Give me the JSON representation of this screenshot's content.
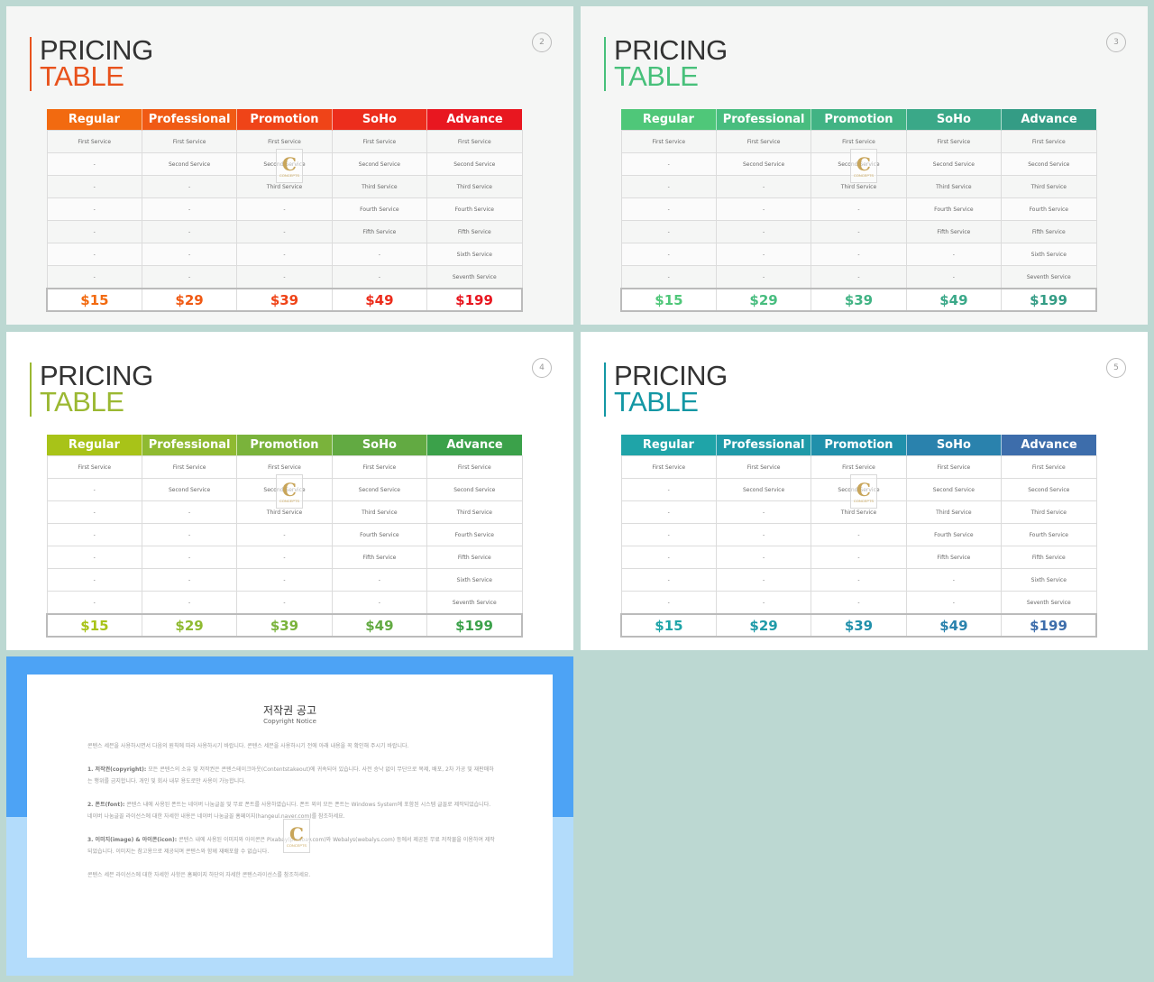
{
  "slides": [
    {
      "title_line1": "PRICING",
      "title_line2": "TABLE",
      "page_number": "2",
      "title_color": "#e8521c",
      "header_colors": [
        "#f26a10",
        "#f05a14",
        "#ef4418",
        "#ec2d1c",
        "#e81720"
      ],
      "price_colors": [
        "#f26a10",
        "#f05a14",
        "#ef4418",
        "#ec2d1c",
        "#e81720"
      ]
    },
    {
      "title_line1": "PRICING",
      "title_line2": "TABLE",
      "page_number": "3",
      "title_color": "#47c07a",
      "header_colors": [
        "#4fc779",
        "#48bd7f",
        "#41b384",
        "#3aa888",
        "#349c85"
      ],
      "price_colors": [
        "#4fc779",
        "#48bd7f",
        "#41b384",
        "#3aa888",
        "#349c85"
      ]
    },
    {
      "title_line1": "PRICING",
      "title_line2": "TABLE",
      "page_number": "4",
      "title_color": "#9bb832",
      "header_colors": [
        "#a8c318",
        "#8fba31",
        "#7ab33b",
        "#62aa42",
        "#3ba14a"
      ],
      "price_colors": [
        "#a8c318",
        "#8fba31",
        "#7ab33b",
        "#62aa42",
        "#3ba14a"
      ]
    },
    {
      "title_line1": "PRICING",
      "title_line2": "TABLE",
      "page_number": "5",
      "title_color": "#1397a4",
      "header_colors": [
        "#1fa4a8",
        "#1f9aa8",
        "#2090ab",
        "#2a82ad",
        "#3d6dab"
      ],
      "price_colors": [
        "#1fa4a8",
        "#1f9aa8",
        "#2090ab",
        "#2a82ad",
        "#3d6dab"
      ]
    }
  ],
  "table": {
    "columns": [
      "Regular",
      "Professional",
      "Promotion",
      "SoHo",
      "Advance"
    ],
    "rows": [
      [
        "First Service",
        "First Service",
        "First Service",
        "First Service",
        "First Service"
      ],
      [
        "-",
        "Second Service",
        "Second Service",
        "Second Service",
        "Second Service"
      ],
      [
        "-",
        "-",
        "Third Service",
        "Third Service",
        "Third Service"
      ],
      [
        "-",
        "-",
        "-",
        "Fourth Service",
        "Fourth Service"
      ],
      [
        "-",
        "-",
        "-",
        "Fifth Service",
        "Fifth Service"
      ],
      [
        "-",
        "-",
        "-",
        "-",
        "Sixth Service"
      ],
      [
        "-",
        "-",
        "-",
        "-",
        "Seventh Service"
      ]
    ],
    "prices": [
      "$15",
      "$29",
      "$39",
      "$49",
      "$199"
    ]
  },
  "watermark": {
    "letter": "C",
    "text": "CONCEPTS"
  },
  "notice": {
    "title": "저작권 공고",
    "subtitle": "Copyright Notice",
    "intro": "콘텐스 세븐을 사용하시면서 다음의 원칙에 따라 사용하시기 바랍니다. 콘텐스 세븐을 사용하시기 전에 아래 내용을 꼭 확인해 주시기 바랍니다.",
    "sections": [
      {
        "heading": "1. 저작권(copyright):",
        "text": "모든 콘텐스의 소유 및 저작권은 콘텐스테이크아웃(Contentstakeout)에 귀속되어 있습니다. 사전 승낙 없이 무단으로 복제, 배포, 2차 가공 및 재판매하는 행위를 금지합니다. 개인 및 회사 내부 용도로만 사용이 가능합니다."
      },
      {
        "heading": "2. 폰트(font):",
        "text": "콘텐스 내에 사용된 폰트는 네이버 나눔글꼴 및 무료 폰트를 사용하였습니다. 폰트 외의 모든 폰트는 Windows System에 포함된 시스템 글꼴로 제작되었습니다. 네이버 나눔글꼴 라이선스에 대한 자세한 내용은 네이버 나눔글꼴 홈페이지(hangeul.naver.com)를 참조하세요."
      },
      {
        "heading": "3. 이미지(image) & 아이콘(icon):",
        "text": "콘텐스 내에 사용된 이미지와 아이콘은 Pixabay(pixabay.com)와 Webalys(webalys.com) 등에서 제공된 무료 저작물을 이용하여 제작되었습니다. 이미지는 참고용으로 제공되며 콘텐스와 함께 재배포할 수 없습니다."
      }
    ],
    "closing": "콘텐스 세븐 라이선스에 대한 자세한 사항은 홈페이지 하단의 자세한 콘텐스라이선스를 참조하세요."
  }
}
